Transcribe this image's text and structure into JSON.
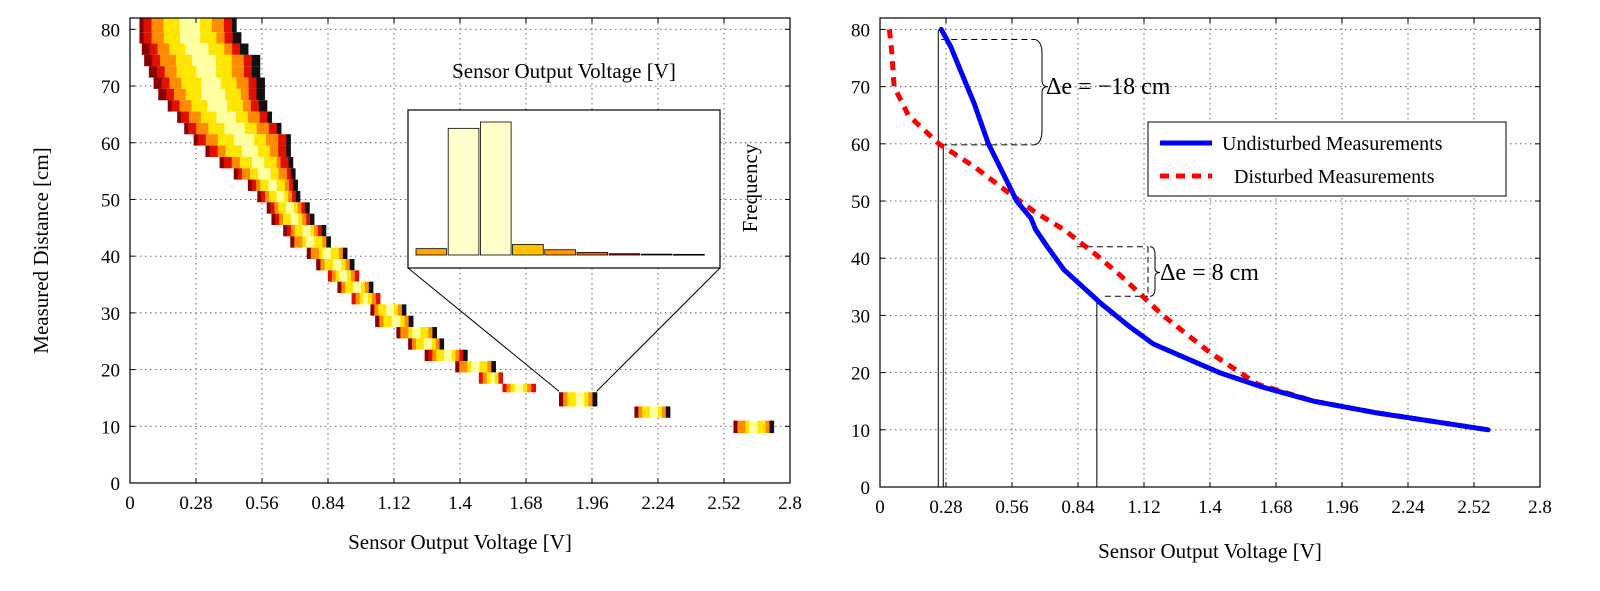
{
  "chart_data": [
    {
      "type": "heatmap",
      "title": "",
      "xlabel": "Sensor Output Voltage [V]",
      "ylabel": "Measured Distance [cm]",
      "xlim": [
        0,
        2.8
      ],
      "ylim": [
        0,
        82
      ],
      "xticks": [
        "0",
        "0.28",
        "0.56",
        "0.84",
        "1.12",
        "1.4",
        "1.68",
        "1.96",
        "2.24",
        "2.52",
        "2.8"
      ],
      "yticks": [
        "0",
        "10",
        "20",
        "30",
        "40",
        "50",
        "60",
        "70",
        "80"
      ],
      "grid": true,
      "colormap": [
        "#8b0000",
        "#e01000",
        "#ff8c00",
        "#ffe600",
        "#ffffa0",
        "#111111"
      ],
      "distance_bands": [
        {
          "y0": 79.5,
          "y1": 82,
          "vmin": 0.04,
          "vmax": 0.45
        },
        {
          "y0": 77.5,
          "y1": 79.5,
          "vmin": 0.04,
          "vmax": 0.47
        },
        {
          "y0": 75.5,
          "y1": 77.5,
          "vmin": 0.05,
          "vmax": 0.5
        },
        {
          "y0": 73.5,
          "y1": 75.5,
          "vmin": 0.06,
          "vmax": 0.55
        },
        {
          "y0": 71.5,
          "y1": 73.5,
          "vmin": 0.08,
          "vmax": 0.55
        },
        {
          "y0": 69.5,
          "y1": 71.5,
          "vmin": 0.1,
          "vmax": 0.57
        },
        {
          "y0": 67.5,
          "y1": 69.5,
          "vmin": 0.12,
          "vmax": 0.57
        },
        {
          "y0": 65.5,
          "y1": 67.5,
          "vmin": 0.16,
          "vmax": 0.58
        },
        {
          "y0": 63.5,
          "y1": 65.5,
          "vmin": 0.2,
          "vmax": 0.6
        },
        {
          "y0": 61.5,
          "y1": 63.5,
          "vmin": 0.23,
          "vmax": 0.64
        },
        {
          "y0": 59.5,
          "y1": 61.5,
          "vmin": 0.27,
          "vmax": 0.68
        },
        {
          "y0": 57.5,
          "y1": 59.5,
          "vmin": 0.32,
          "vmax": 0.68
        },
        {
          "y0": 55.5,
          "y1": 57.5,
          "vmin": 0.38,
          "vmax": 0.69
        },
        {
          "y0": 53.5,
          "y1": 55.5,
          "vmin": 0.44,
          "vmax": 0.7
        },
        {
          "y0": 51.5,
          "y1": 53.5,
          "vmin": 0.5,
          "vmax": 0.71
        },
        {
          "y0": 49.5,
          "y1": 51.5,
          "vmin": 0.54,
          "vmax": 0.72
        },
        {
          "y0": 47.5,
          "y1": 49.5,
          "vmin": 0.58,
          "vmax": 0.76
        },
        {
          "y0": 45.5,
          "y1": 47.5,
          "vmin": 0.6,
          "vmax": 0.78
        },
        {
          "y0": 43.5,
          "y1": 45.5,
          "vmin": 0.65,
          "vmax": 0.83
        },
        {
          "y0": 41.5,
          "y1": 43.5,
          "vmin": 0.68,
          "vmax": 0.85
        },
        {
          "y0": 39.5,
          "y1": 41.5,
          "vmin": 0.75,
          "vmax": 0.92
        },
        {
          "y0": 37.5,
          "y1": 39.5,
          "vmin": 0.79,
          "vmax": 0.95
        },
        {
          "y0": 35.5,
          "y1": 37.5,
          "vmin": 0.84,
          "vmax": 0.97
        },
        {
          "y0": 33.5,
          "y1": 35.5,
          "vmin": 0.88,
          "vmax": 1.03
        },
        {
          "y0": 31.5,
          "y1": 33.5,
          "vmin": 0.94,
          "vmax": 1.06
        },
        {
          "y0": 29.5,
          "y1": 31.5,
          "vmin": 1.02,
          "vmax": 1.17
        },
        {
          "y0": 27.5,
          "y1": 29.5,
          "vmin": 1.04,
          "vmax": 1.2
        },
        {
          "y0": 25.5,
          "y1": 27.5,
          "vmin": 1.13,
          "vmax": 1.3
        },
        {
          "y0": 23.5,
          "y1": 25.5,
          "vmin": 1.18,
          "vmax": 1.33
        },
        {
          "y0": 21.5,
          "y1": 23.5,
          "vmin": 1.25,
          "vmax": 1.43
        },
        {
          "y0": 19.5,
          "y1": 21.5,
          "vmin": 1.38,
          "vmax": 1.55
        },
        {
          "y0": 17.5,
          "y1": 19.5,
          "vmin": 1.48,
          "vmax": 1.58
        },
        {
          "y0": 16.0,
          "y1": 17.5,
          "vmin": 1.58,
          "vmax": 1.72
        },
        {
          "y0": 13.5,
          "y1": 16.0,
          "vmin": 1.82,
          "vmax": 1.98
        },
        {
          "y0": 11.5,
          "y1": 13.5,
          "vmin": 2.14,
          "vmax": 2.29
        },
        {
          "y0": 8.8,
          "y1": 11.0,
          "vmin": 2.56,
          "vmax": 2.73
        }
      ],
      "inset": {
        "type": "bar",
        "title": "Sensor Output Voltage [V]",
        "ylabel": "Frequency",
        "values": [
          3,
          60,
          63,
          5,
          2.5,
          1.2,
          0.6,
          0.4,
          0.3
        ],
        "colors": [
          "#ffa500",
          "#ffffcc",
          "#ffffcc",
          "#ffc000",
          "#ff9500",
          "#ff6000",
          "#b00000",
          "#444444",
          "#000000"
        ],
        "zoom_source": {
          "x0": 1.82,
          "x1": 1.98,
          "y": 16
        }
      }
    },
    {
      "type": "line",
      "title": "",
      "xlabel": "Sensor Output Voltage [V]",
      "ylabel": "",
      "xlim": [
        0,
        2.8
      ],
      "ylim": [
        0,
        82
      ],
      "xticks": [
        "0",
        "0.28",
        "0.56",
        "0.84",
        "1.12",
        "1.4",
        "1.68",
        "1.96",
        "2.24",
        "2.52",
        "2.8"
      ],
      "yticks": [
        "0",
        "10",
        "20",
        "30",
        "40",
        "50",
        "60",
        "70",
        "80"
      ],
      "grid": true,
      "legend_position": "top-right",
      "series": [
        {
          "name": "Undisturbed Measurements",
          "color": "#0000ff",
          "style": "solid",
          "x": [
            0.26,
            0.3,
            0.34,
            0.4,
            0.46,
            0.52,
            0.58,
            0.64,
            0.66,
            0.71,
            0.78,
            0.86,
            0.94,
            1.06,
            1.16,
            1.3,
            1.44,
            1.62,
            1.84,
            2.1,
            2.34,
            2.58
          ],
          "y": [
            80,
            77,
            73,
            67,
            60,
            55,
            50,
            47,
            45,
            42,
            38,
            35,
            32,
            28,
            25,
            22.5,
            20,
            17.5,
            15,
            13,
            11.5,
            10
          ]
        },
        {
          "name": "Disturbed Measurements",
          "color": "#ff0000",
          "style": "dashed",
          "x": [
            0.04,
            0.05,
            0.06,
            0.12,
            0.25,
            0.4,
            0.56,
            0.66,
            0.78,
            0.92,
            1.02,
            1.2,
            1.4,
            1.6,
            1.84,
            2.1,
            2.34,
            2.58
          ],
          "y": [
            80,
            76,
            70,
            65,
            60,
            56,
            51,
            48,
            45,
            40.5,
            37,
            30,
            23.5,
            18,
            15,
            13,
            11.5,
            10
          ]
        }
      ],
      "annotations": [
        {
          "text": "Δe = −18 cm",
          "x": 0.26,
          "y_top": 80,
          "y_bottom": 60
        },
        {
          "text": "Δe = 8 cm",
          "x": 0.92,
          "y_top": 42,
          "y_bottom": 33
        }
      ]
    }
  ]
}
